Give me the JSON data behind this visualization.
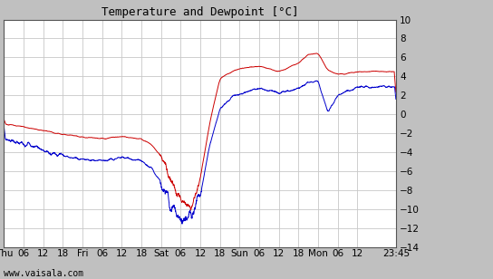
{
  "title": "Temperature and Dewpoint [°C]",
  "ylim": [
    -14,
    10
  ],
  "yticks": [
    -14,
    -12,
    -10,
    -8,
    -6,
    -4,
    -2,
    0,
    2,
    4,
    6,
    8,
    10
  ],
  "background_color": "#c0c0c0",
  "plot_bg_color": "#ffffff",
  "grid_color": "#c8c8c8",
  "temp_color": "#cc0000",
  "dew_color": "#0000cc",
  "watermark": "www.vaisala.com",
  "xtick_labels": [
    "Thu",
    "06",
    "12",
    "18",
    "Fri",
    "06",
    "12",
    "18",
    "Sat",
    "06",
    "12",
    "18",
    "Sun",
    "06",
    "12",
    "18",
    "Mon",
    "06",
    "12",
    "23:45"
  ],
  "xtick_positions": [
    0,
    6,
    12,
    18,
    24,
    30,
    36,
    42,
    48,
    54,
    60,
    66,
    72,
    78,
    84,
    90,
    96,
    102,
    108,
    119.75
  ]
}
